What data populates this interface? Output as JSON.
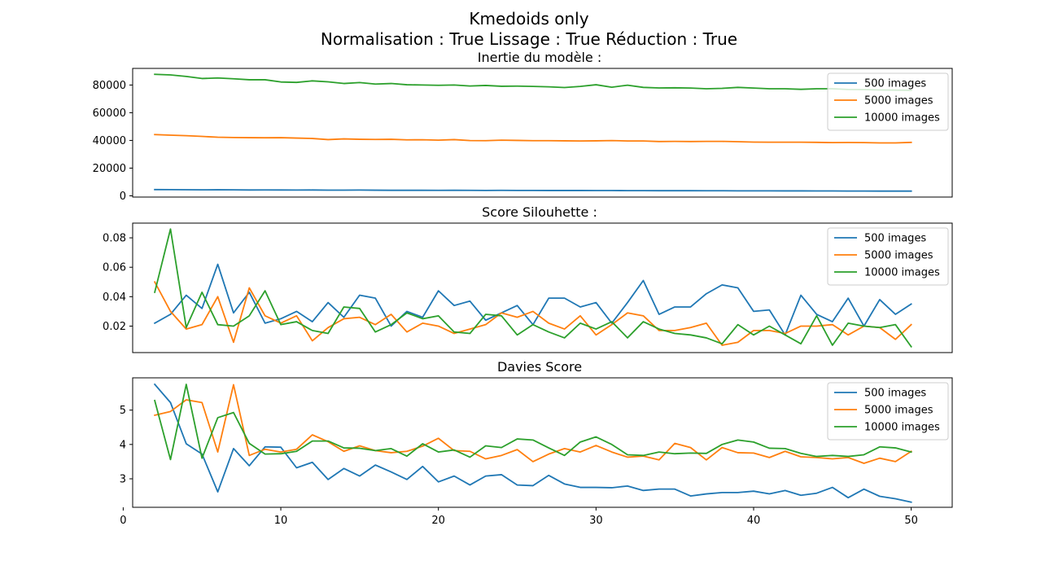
{
  "figure": {
    "suptitle_line1": "Kmedoids only",
    "suptitle_line2": "Normalisation : True Lissage : True Réduction : True"
  },
  "chart_data": [
    {
      "type": "line",
      "title": "Inertie du modèle :",
      "xlabel": "",
      "ylabel": "",
      "x": [
        2,
        3,
        4,
        5,
        6,
        7,
        8,
        9,
        10,
        11,
        12,
        13,
        14,
        15,
        16,
        17,
        18,
        19,
        20,
        21,
        22,
        23,
        24,
        25,
        26,
        27,
        28,
        29,
        30,
        31,
        32,
        33,
        34,
        35,
        36,
        37,
        38,
        39,
        40,
        41,
        42,
        43,
        44,
        45,
        46,
        47,
        48,
        49,
        50
      ],
      "xlim": [
        0.6,
        52.6
      ],
      "ylim": [
        -900,
        92000
      ],
      "yticks": [
        0,
        20000,
        40000,
        60000,
        80000
      ],
      "yticklabels": [
        "0",
        "20000",
        "40000",
        "60000",
        "80000"
      ],
      "xticks_visible": false,
      "legend": "top-right",
      "grid": false,
      "series": [
        {
          "name": "500 images",
          "color": "#1f77b4",
          "values": [
            4500,
            4450,
            4400,
            4300,
            4350,
            4300,
            4200,
            4250,
            4200,
            4150,
            4200,
            4100,
            4100,
            4150,
            4050,
            4000,
            4000,
            4000,
            3950,
            4000,
            3950,
            3900,
            3950,
            3900,
            3900,
            3850,
            3850,
            3850,
            3800,
            3800,
            3750,
            3750,
            3700,
            3700,
            3700,
            3650,
            3650,
            3600,
            3600,
            3600,
            3550,
            3550,
            3500,
            3500,
            3450,
            3450,
            3400,
            3400,
            3400
          ]
        },
        {
          "name": "5000 images",
          "color": "#ff7f0e",
          "values": [
            44200,
            43800,
            43400,
            42900,
            42300,
            42100,
            42000,
            41900,
            42000,
            41700,
            41400,
            40600,
            41100,
            40800,
            40700,
            40800,
            40400,
            40500,
            40200,
            40600,
            39900,
            39800,
            40200,
            40000,
            39800,
            39800,
            39700,
            39600,
            39700,
            39900,
            39600,
            39600,
            39200,
            39300,
            39200,
            39300,
            39300,
            39100,
            38800,
            38700,
            38700,
            38700,
            38600,
            38400,
            38500,
            38400,
            38200,
            38200,
            38600
          ]
        },
        {
          "name": "10000 images",
          "color": "#2ca02c",
          "values": [
            87700,
            87300,
            86200,
            84700,
            85100,
            84500,
            83800,
            83800,
            82200,
            81900,
            83000,
            82300,
            81100,
            81800,
            80700,
            81100,
            80200,
            80000,
            79800,
            80000,
            79300,
            79700,
            79100,
            79200,
            79000,
            78700,
            78200,
            79000,
            80200,
            78400,
            79900,
            78300,
            77900,
            78000,
            77800,
            77300,
            77600,
            78300,
            77800,
            77300,
            77300,
            76900,
            77300,
            77300,
            76800,
            76700,
            76400,
            76300,
            76200
          ]
        }
      ]
    },
    {
      "type": "line",
      "title": "Score Silouhette :",
      "xlabel": "",
      "ylabel": "",
      "x": [
        2,
        3,
        4,
        5,
        6,
        7,
        8,
        9,
        10,
        11,
        12,
        13,
        14,
        15,
        16,
        17,
        18,
        19,
        20,
        21,
        22,
        23,
        24,
        25,
        26,
        27,
        28,
        29,
        30,
        31,
        32,
        33,
        34,
        35,
        36,
        37,
        38,
        39,
        40,
        41,
        42,
        43,
        44,
        45,
        46,
        47,
        48,
        49,
        50
      ],
      "xlim": [
        0.6,
        52.6
      ],
      "ylim": [
        0.002,
        0.09
      ],
      "yticks": [
        0.02,
        0.04,
        0.06,
        0.08
      ],
      "yticklabels": [
        "0.02",
        "0.04",
        "0.06",
        "0.08"
      ],
      "xticks_visible": false,
      "legend": "top-right",
      "grid": false,
      "series": [
        {
          "name": "500 images",
          "color": "#1f77b4",
          "values": [
            0.022,
            0.028,
            0.041,
            0.032,
            0.062,
            0.029,
            0.043,
            0.022,
            0.025,
            0.03,
            0.023,
            0.036,
            0.026,
            0.041,
            0.039,
            0.02,
            0.03,
            0.026,
            0.044,
            0.034,
            0.037,
            0.024,
            0.029,
            0.034,
            0.021,
            0.039,
            0.039,
            0.033,
            0.036,
            0.022,
            0.036,
            0.051,
            0.028,
            0.033,
            0.033,
            0.042,
            0.048,
            0.046,
            0.03,
            0.031,
            0.014,
            0.041,
            0.028,
            0.023,
            0.039,
            0.02,
            0.038,
            0.028,
            0.035
          ]
        },
        {
          "name": "5000 images",
          "color": "#ff7f0e",
          "values": [
            0.05,
            0.03,
            0.018,
            0.021,
            0.04,
            0.009,
            0.046,
            0.027,
            0.022,
            0.027,
            0.01,
            0.019,
            0.025,
            0.026,
            0.021,
            0.028,
            0.016,
            0.022,
            0.02,
            0.015,
            0.018,
            0.021,
            0.029,
            0.026,
            0.03,
            0.022,
            0.018,
            0.027,
            0.014,
            0.021,
            0.029,
            0.027,
            0.017,
            0.017,
            0.019,
            0.022,
            0.007,
            0.009,
            0.017,
            0.017,
            0.015,
            0.02,
            0.02,
            0.021,
            0.014,
            0.02,
            0.019,
            0.011,
            0.021
          ]
        },
        {
          "name": "10000 images",
          "color": "#2ca02c",
          "values": [
            0.043,
            0.086,
            0.019,
            0.043,
            0.021,
            0.02,
            0.027,
            0.044,
            0.021,
            0.023,
            0.017,
            0.015,
            0.033,
            0.032,
            0.016,
            0.021,
            0.029,
            0.025,
            0.027,
            0.016,
            0.015,
            0.028,
            0.027,
            0.014,
            0.021,
            0.016,
            0.012,
            0.022,
            0.018,
            0.023,
            0.012,
            0.023,
            0.018,
            0.015,
            0.014,
            0.012,
            0.008,
            0.021,
            0.014,
            0.02,
            0.014,
            0.008,
            0.027,
            0.007,
            0.022,
            0.02,
            0.019,
            0.021,
            0.006
          ]
        }
      ]
    },
    {
      "type": "line",
      "title": "Davies Score",
      "xlabel": "",
      "ylabel": "",
      "x": [
        2,
        3,
        4,
        5,
        6,
        7,
        8,
        9,
        10,
        11,
        12,
        13,
        14,
        15,
        16,
        17,
        18,
        19,
        20,
        21,
        22,
        23,
        24,
        25,
        26,
        27,
        28,
        29,
        30,
        31,
        32,
        33,
        34,
        35,
        36,
        37,
        38,
        39,
        40,
        41,
        42,
        43,
        44,
        45,
        46,
        47,
        48,
        49,
        50
      ],
      "xlim": [
        0.6,
        52.6
      ],
      "ylim": [
        2.17,
        5.94
      ],
      "yticks": [
        3,
        4,
        5
      ],
      "yticklabels": [
        "3",
        "4",
        "5"
      ],
      "xticks": [
        0,
        10,
        20,
        30,
        40,
        50
      ],
      "xticklabels": [
        "0",
        "10",
        "20",
        "30",
        "40",
        "50"
      ],
      "legend": "top-right",
      "grid": false,
      "series": [
        {
          "name": "500 images",
          "color": "#1f77b4",
          "values": [
            5.75,
            5.22,
            4.02,
            3.72,
            2.62,
            3.88,
            3.38,
            3.93,
            3.92,
            3.32,
            3.48,
            2.98,
            3.3,
            3.08,
            3.4,
            3.2,
            2.98,
            3.36,
            2.91,
            3.08,
            2.82,
            3.08,
            3.12,
            2.82,
            2.8,
            3.1,
            2.85,
            2.75,
            2.75,
            2.74,
            2.79,
            2.66,
            2.7,
            2.7,
            2.5,
            2.56,
            2.6,
            2.6,
            2.64,
            2.56,
            2.66,
            2.52,
            2.58,
            2.75,
            2.45,
            2.7,
            2.49,
            2.42,
            2.32
          ]
        },
        {
          "name": "5000 images",
          "color": "#ff7f0e",
          "values": [
            4.85,
            4.96,
            5.3,
            5.22,
            3.78,
            5.74,
            3.68,
            3.86,
            3.78,
            3.86,
            4.28,
            4.08,
            3.8,
            3.96,
            3.82,
            3.76,
            3.8,
            3.95,
            4.18,
            3.82,
            3.8,
            3.58,
            3.68,
            3.85,
            3.5,
            3.72,
            3.88,
            3.78,
            3.97,
            3.78,
            3.63,
            3.66,
            3.55,
            4.03,
            3.91,
            3.55,
            3.91,
            3.76,
            3.75,
            3.62,
            3.8,
            3.64,
            3.62,
            3.58,
            3.62,
            3.45,
            3.6,
            3.5,
            3.8
          ]
        },
        {
          "name": "10000 images",
          "color": "#2ca02c",
          "values": [
            5.28,
            3.56,
            5.75,
            3.6,
            4.78,
            4.93,
            4.03,
            3.72,
            3.73,
            3.8,
            4.1,
            4.1,
            3.9,
            3.89,
            3.82,
            3.88,
            3.66,
            4.02,
            3.78,
            3.84,
            3.63,
            3.96,
            3.91,
            4.16,
            4.13,
            3.9,
            3.68,
            4.07,
            4.22,
            4.0,
            3.7,
            3.68,
            3.78,
            3.73,
            3.75,
            3.74,
            4.0,
            4.13,
            4.07,
            3.89,
            3.88,
            3.74,
            3.65,
            3.68,
            3.65,
            3.7,
            3.93,
            3.9,
            3.78
          ]
        }
      ]
    }
  ]
}
